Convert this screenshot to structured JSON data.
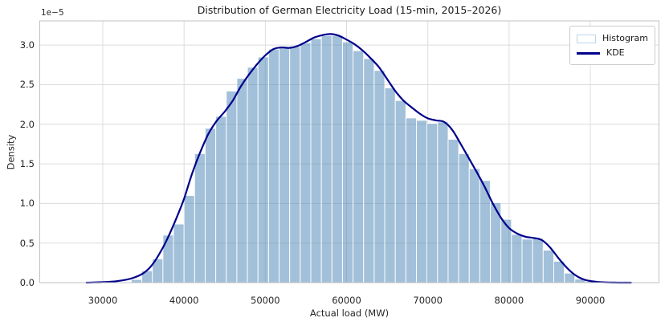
{
  "chart_data": {
    "type": "histogram+kde",
    "title": "Distribution of German Electricity Load (15-min, 2015–2026)",
    "xlabel": "Actual load (MW)",
    "ylabel": "Density",
    "y_offset_label": "1e−5",
    "grid": true,
    "legend": [
      {
        "label": "Histogram",
        "kind": "patch"
      },
      {
        "label": "KDE",
        "kind": "line"
      }
    ],
    "x_ticks": [
      30000,
      40000,
      50000,
      60000,
      70000,
      80000,
      90000
    ],
    "x_tick_labels": [
      "30000",
      "40000",
      "50000",
      "60000",
      "70000",
      "80000",
      "90000"
    ],
    "y_tick_values_e5": [
      0.0,
      0.5,
      1.0,
      1.5,
      2.0,
      2.5,
      3.0
    ],
    "y_tick_labels": [
      "0.0",
      "0.5",
      "1.0",
      "1.5",
      "2.0",
      "2.5",
      "3.0"
    ],
    "xlim": [
      22240,
      98450
    ],
    "ylim_e5": [
      0,
      3.306
    ],
    "histogram": {
      "bin_start_mw": 33500,
      "bin_width_mw": 1300,
      "densities_e5": [
        0.04,
        0.15,
        0.3,
        0.6,
        0.74,
        1.1,
        1.63,
        1.95,
        2.1,
        2.42,
        2.58,
        2.72,
        2.85,
        2.95,
        2.97,
        2.98,
        3.03,
        3.08,
        3.12,
        3.12,
        3.04,
        2.93,
        2.83,
        2.68,
        2.46,
        2.3,
        2.08,
        2.05,
        2.01,
        2.03,
        1.81,
        1.63,
        1.44,
        1.29,
        1.01,
        0.8,
        0.61,
        0.55,
        0.56,
        0.41,
        0.27,
        0.12,
        0.045,
        0.015
      ]
    },
    "kde": {
      "x_start_mw": 28000,
      "x_step_mw": 1000,
      "densities_e5": [
        0.0,
        0.003,
        0.006,
        0.012,
        0.022,
        0.04,
        0.07,
        0.12,
        0.215,
        0.37,
        0.565,
        0.8,
        1.06,
        1.38,
        1.65,
        1.88,
        2.04,
        2.16,
        2.3,
        2.48,
        2.63,
        2.76,
        2.87,
        2.95,
        2.97,
        2.965,
        2.99,
        3.04,
        3.095,
        3.125,
        3.14,
        3.12,
        3.07,
        3.01,
        2.93,
        2.83,
        2.72,
        2.57,
        2.42,
        2.3,
        2.215,
        2.135,
        2.075,
        2.05,
        2.03,
        1.93,
        1.76,
        1.58,
        1.4,
        1.21,
        1.0,
        0.82,
        0.69,
        0.62,
        0.58,
        0.565,
        0.54,
        0.45,
        0.32,
        0.2,
        0.105,
        0.048,
        0.02,
        0.008,
        0.003,
        0.001,
        0.0,
        0.0
      ]
    }
  },
  "colors": {
    "histogram_fill": "rgba(70,130,180,0.5)",
    "histogram_edge": "rgba(255,255,255,0.9)",
    "kde_line": "#00008b",
    "grid": "#dcdcdc",
    "spine": "#c0c0c0",
    "text": "#262626",
    "background": "#ffffff"
  }
}
